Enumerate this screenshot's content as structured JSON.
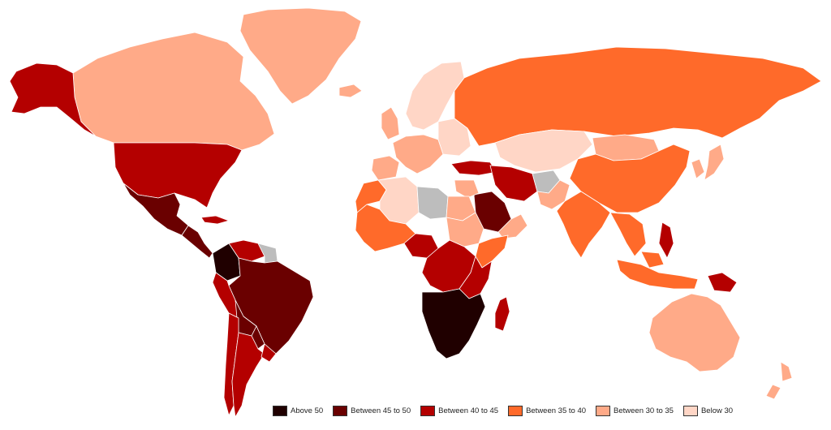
{
  "legend": {
    "items": [
      {
        "key": "above50",
        "label": "Above 50",
        "color": "#200000"
      },
      {
        "key": "b45_50",
        "label": "Between 45 to 50",
        "color": "#6a0000"
      },
      {
        "key": "b40_45",
        "label": "Between 40 to 45",
        "color": "#b40000"
      },
      {
        "key": "b35_40",
        "label": "Between 35 to 40",
        "color": "#ff6a2a"
      },
      {
        "key": "b30_35",
        "label": "Between 30 to 35",
        "color": "#ffaa88"
      },
      {
        "key": "below30",
        "label": "Below 30",
        "color": "#ffd6c6"
      }
    ],
    "no_data_color": "#bdbdbd",
    "placement": "bottom-center"
  },
  "regions": [
    {
      "name": "greenland",
      "category": "b30_35"
    },
    {
      "name": "canada",
      "category": "b30_35"
    },
    {
      "name": "alaska",
      "category": "b40_45"
    },
    {
      "name": "united-states",
      "category": "b40_45"
    },
    {
      "name": "mexico",
      "category": "b45_50"
    },
    {
      "name": "central-america",
      "category": "b45_50"
    },
    {
      "name": "cuba",
      "category": "b40_45"
    },
    {
      "name": "venezuela",
      "category": "b40_45"
    },
    {
      "name": "colombia",
      "category": "above50"
    },
    {
      "name": "guianas",
      "category": "no_data"
    },
    {
      "name": "brazil",
      "category": "b45_50"
    },
    {
      "name": "peru",
      "category": "b40_45"
    },
    {
      "name": "bolivia",
      "category": "b45_50"
    },
    {
      "name": "paraguay",
      "category": "b45_50"
    },
    {
      "name": "chile",
      "category": "b40_45"
    },
    {
      "name": "argentina",
      "category": "b40_45"
    },
    {
      "name": "uruguay",
      "category": "b40_45"
    },
    {
      "name": "iceland",
      "category": "b30_35"
    },
    {
      "name": "scandinavia",
      "category": "below30"
    },
    {
      "name": "united-kingdom",
      "category": "b30_35"
    },
    {
      "name": "western-europe",
      "category": "b30_35"
    },
    {
      "name": "iberia",
      "category": "b30_35"
    },
    {
      "name": "eastern-europe",
      "category": "below30"
    },
    {
      "name": "turkey",
      "category": "b40_45"
    },
    {
      "name": "russia",
      "category": "b35_40"
    },
    {
      "name": "kazakhstan-central-asia",
      "category": "below30"
    },
    {
      "name": "mongolia",
      "category": "b30_35"
    },
    {
      "name": "china",
      "category": "b35_40"
    },
    {
      "name": "korea-japan",
      "category": "b30_35"
    },
    {
      "name": "iran",
      "category": "b40_45"
    },
    {
      "name": "afghanistan",
      "category": "no_data"
    },
    {
      "name": "pakistan",
      "category": "b30_35"
    },
    {
      "name": "india",
      "category": "b35_40"
    },
    {
      "name": "saudi-arabia",
      "category": "b45_50"
    },
    {
      "name": "middle-east-gulf",
      "category": "b30_35"
    },
    {
      "name": "southeast-asia",
      "category": "b35_40"
    },
    {
      "name": "philippines",
      "category": "b40_45"
    },
    {
      "name": "indonesia",
      "category": "b35_40"
    },
    {
      "name": "papua-new-guinea",
      "category": "b40_45"
    },
    {
      "name": "australia",
      "category": "b30_35"
    },
    {
      "name": "new-zealand",
      "category": "b30_35"
    },
    {
      "name": "morocco",
      "category": "b35_40"
    },
    {
      "name": "algeria",
      "category": "below30"
    },
    {
      "name": "libya",
      "category": "no_data"
    },
    {
      "name": "egypt",
      "category": "b30_35"
    },
    {
      "name": "west-africa",
      "category": "b35_40"
    },
    {
      "name": "nigeria-region",
      "category": "b40_45"
    },
    {
      "name": "sudan",
      "category": "b30_35"
    },
    {
      "name": "horn-of-africa",
      "category": "b35_40"
    },
    {
      "name": "central-africa",
      "category": "b40_45"
    },
    {
      "name": "east-africa",
      "category": "b40_45"
    },
    {
      "name": "southern-africa",
      "category": "above50"
    },
    {
      "name": "madagascar",
      "category": "b40_45"
    }
  ]
}
